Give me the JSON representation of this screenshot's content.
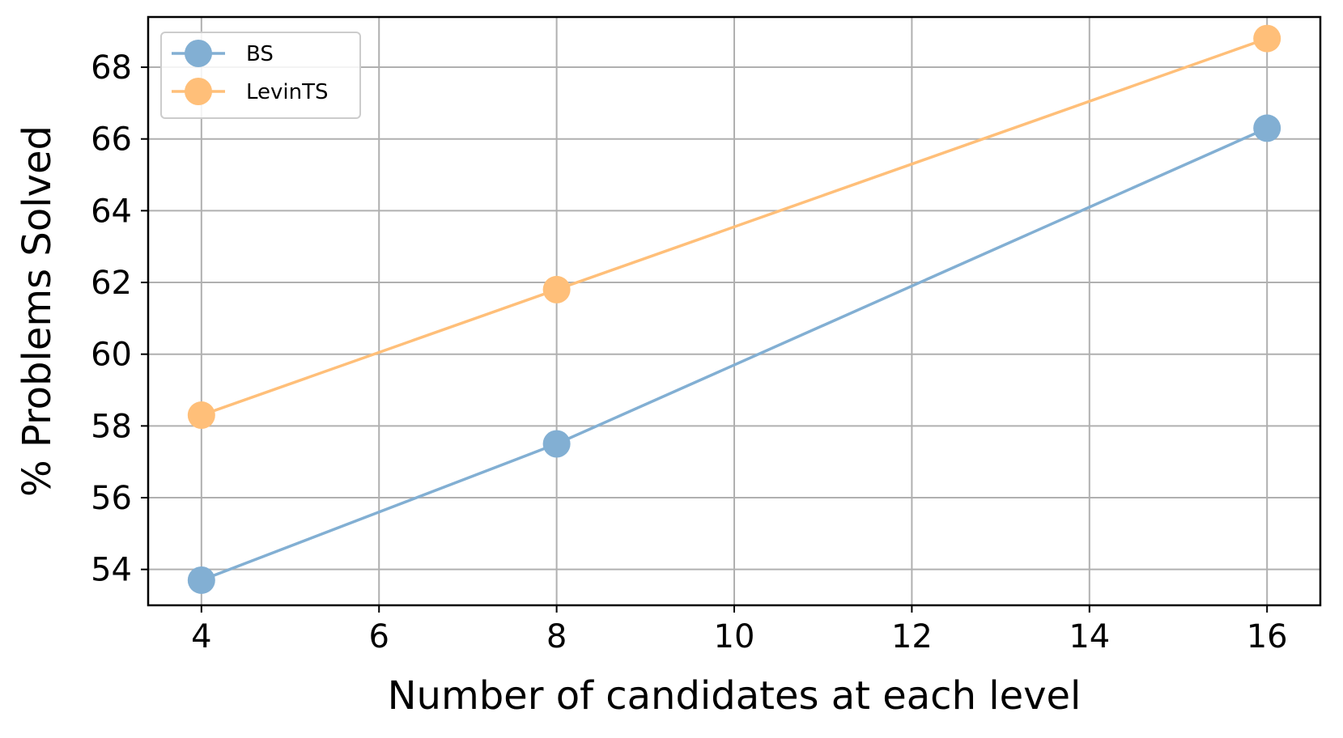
{
  "chart_data": {
    "type": "line",
    "xlabel": "Number of candidates at each level",
    "ylabel": "% Problems Solved",
    "xlim": [
      3.4,
      16.6
    ],
    "ylim": [
      53,
      69.4
    ],
    "xticks": [
      4,
      6,
      8,
      10,
      12,
      14,
      16
    ],
    "yticks": [
      54,
      56,
      58,
      60,
      62,
      64,
      66,
      68
    ],
    "x": [
      4,
      8,
      16
    ],
    "grid": true,
    "legend_position": "top-left",
    "series": [
      {
        "name": "BS",
        "color": "#82afd3",
        "values": [
          53.7,
          57.5,
          66.3
        ]
      },
      {
        "name": "LevinTS",
        "color": "#ffbf79",
        "values": [
          58.3,
          61.8,
          68.8
        ]
      }
    ]
  }
}
